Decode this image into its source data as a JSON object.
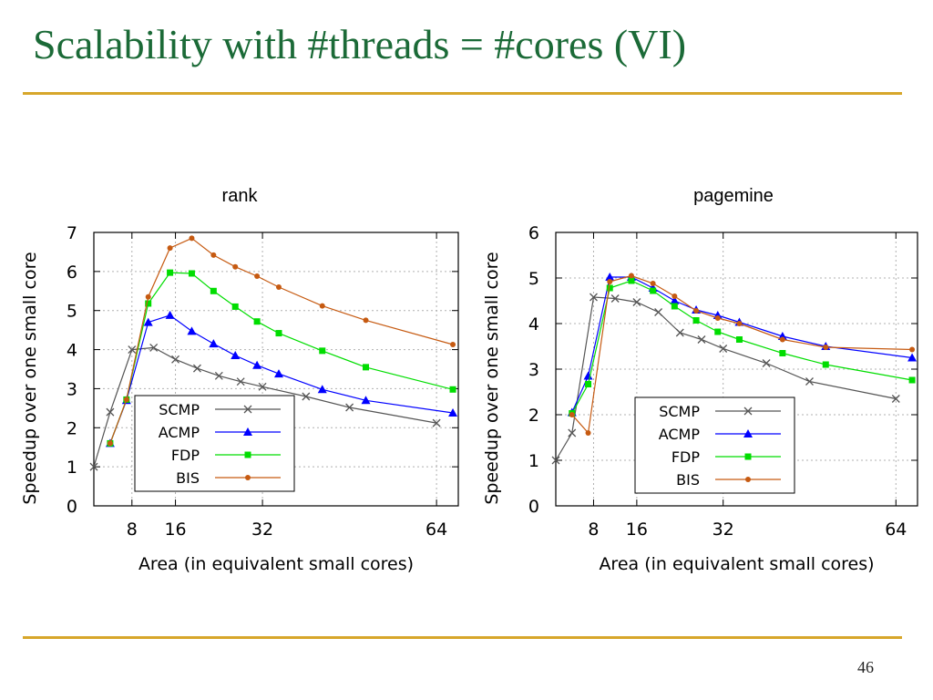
{
  "slide": {
    "title": "Scalability with #threads = #cores (VI)",
    "page_number": "46",
    "accent_color": "#d7a62a",
    "title_color": "#1b6a37"
  },
  "chart_data": [
    {
      "type": "line",
      "title": "rank",
      "xlabel": "Area (in equivalent small cores)",
      "ylabel": "Speedup over one small core",
      "xticks": [
        8,
        16,
        32,
        64
      ],
      "xlim": [
        1,
        68
      ],
      "ylim": [
        0,
        7
      ],
      "yticks": [
        0,
        1,
        2,
        3,
        4,
        5,
        6,
        7
      ],
      "grid": true,
      "legend_position": "bottom-left",
      "series": [
        {
          "name": "SCMP",
          "color": "#555555",
          "marker": "x",
          "x": [
            1,
            4,
            8,
            12,
            16,
            20,
            24,
            28,
            32,
            40,
            48,
            64
          ],
          "y": [
            1.0,
            2.4,
            4.0,
            4.05,
            3.75,
            3.52,
            3.33,
            3.18,
            3.05,
            2.8,
            2.52,
            2.12
          ]
        },
        {
          "name": "ACMP",
          "color": "#0000ff",
          "marker": "triangle",
          "x": [
            4,
            7,
            11,
            15,
            19,
            23,
            27,
            31,
            35,
            43,
            51,
            67
          ],
          "y": [
            1.6,
            2.7,
            4.7,
            4.88,
            4.47,
            4.15,
            3.85,
            3.6,
            3.38,
            2.98,
            2.7,
            2.38
          ]
        },
        {
          "name": "FDP",
          "color": "#00dd00",
          "marker": "square",
          "x": [
            4,
            7,
            11,
            15,
            19,
            23,
            27,
            31,
            35,
            43,
            51,
            67
          ],
          "y": [
            1.6,
            2.72,
            5.18,
            5.97,
            5.95,
            5.5,
            5.1,
            4.72,
            4.42,
            3.97,
            3.55,
            2.98
          ]
        },
        {
          "name": "BIS",
          "color": "#c65a11",
          "marker": "dot",
          "x": [
            4,
            7,
            11,
            15,
            19,
            23,
            27,
            31,
            35,
            43,
            51,
            67
          ],
          "y": [
            1.6,
            2.72,
            5.35,
            6.6,
            6.85,
            6.42,
            6.12,
            5.88,
            5.6,
            5.12,
            4.75,
            4.13
          ]
        }
      ]
    },
    {
      "type": "line",
      "title": "pagemine",
      "xlabel": "Area (in equivalent small cores)",
      "ylabel": "Speedup over one small core",
      "xticks": [
        8,
        16,
        32,
        64
      ],
      "xlim": [
        1,
        68
      ],
      "ylim": [
        0,
        6
      ],
      "yticks": [
        0,
        1,
        2,
        3,
        4,
        5,
        6
      ],
      "grid": true,
      "legend_position": "bottom-right",
      "series": [
        {
          "name": "SCMP",
          "color": "#555555",
          "marker": "x",
          "x": [
            1,
            4,
            8,
            12,
            16,
            20,
            24,
            28,
            32,
            40,
            48,
            64
          ],
          "y": [
            1.0,
            1.6,
            4.58,
            4.55,
            4.47,
            4.25,
            3.8,
            3.65,
            3.45,
            3.13,
            2.73,
            2.35
          ]
        },
        {
          "name": "ACMP",
          "color": "#0000ff",
          "marker": "triangle",
          "x": [
            4,
            7,
            11,
            15,
            19,
            23,
            27,
            31,
            35,
            43,
            51,
            67
          ],
          "y": [
            2.05,
            2.85,
            5.02,
            5.02,
            4.78,
            4.5,
            4.3,
            4.18,
            4.03,
            3.72,
            3.5,
            3.25
          ]
        },
        {
          "name": "FDP",
          "color": "#00dd00",
          "marker": "square",
          "x": [
            4,
            7,
            11,
            15,
            19,
            23,
            27,
            31,
            35,
            43,
            51,
            67
          ],
          "y": [
            2.03,
            2.67,
            4.78,
            4.94,
            4.72,
            4.38,
            4.07,
            3.82,
            3.65,
            3.35,
            3.1,
            2.76
          ]
        },
        {
          "name": "BIS",
          "color": "#c65a11",
          "marker": "dot",
          "x": [
            4,
            7,
            11,
            15,
            19,
            23,
            27,
            31,
            35,
            43,
            51,
            67
          ],
          "y": [
            2.0,
            1.6,
            4.92,
            5.05,
            4.88,
            4.6,
            4.28,
            4.12,
            4.0,
            3.65,
            3.48,
            3.43
          ]
        }
      ]
    }
  ]
}
